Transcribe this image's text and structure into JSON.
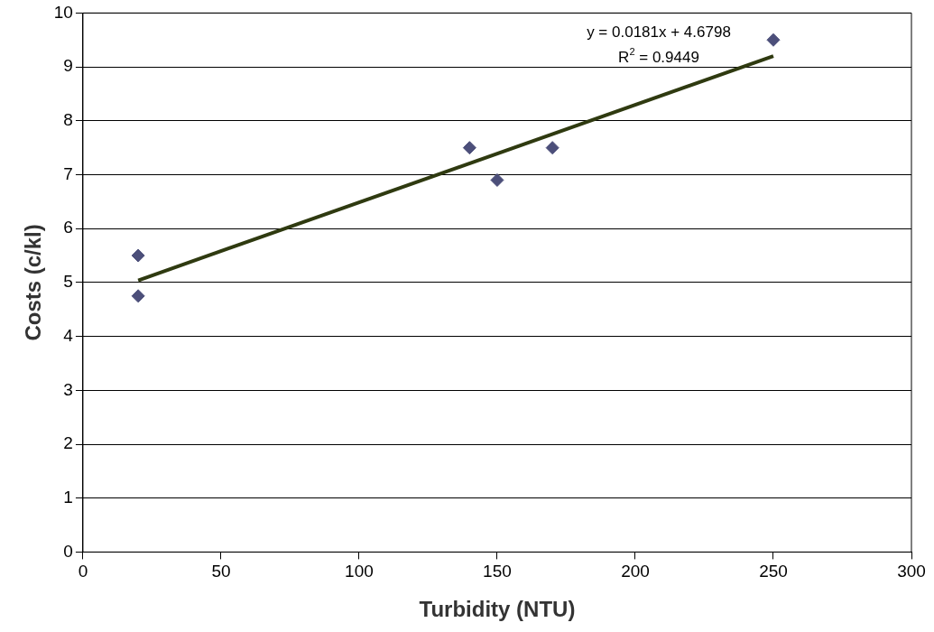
{
  "chart_data": {
    "type": "scatter",
    "xlabel": "Turbidity (NTU)",
    "ylabel": "Costs (c/kl)",
    "xlim": [
      0,
      300
    ],
    "xticks": [
      0,
      50,
      100,
      150,
      200,
      250,
      300
    ],
    "ylim": [
      0,
      10
    ],
    "yticks": [
      0,
      1,
      2,
      3,
      4,
      5,
      6,
      7,
      8,
      9,
      10
    ],
    "grid": "y",
    "legend": false,
    "marker": "diamond",
    "series": [
      {
        "type": "scatter",
        "color": "#4c4f7a",
        "x": [
          20,
          20,
          140,
          150,
          170,
          250
        ],
        "values": [
          5.5,
          4.75,
          7.5,
          6.9,
          7.5,
          9.5
        ]
      },
      {
        "type": "line",
        "color": "#2f3a10",
        "marker": "none",
        "x": [
          20,
          250
        ],
        "values": [
          5.04,
          9.2
        ]
      }
    ],
    "annotations": [
      "y = 0.0181x + 4.6798",
      "R$^{2}$ = 0.9449"
    ]
  }
}
